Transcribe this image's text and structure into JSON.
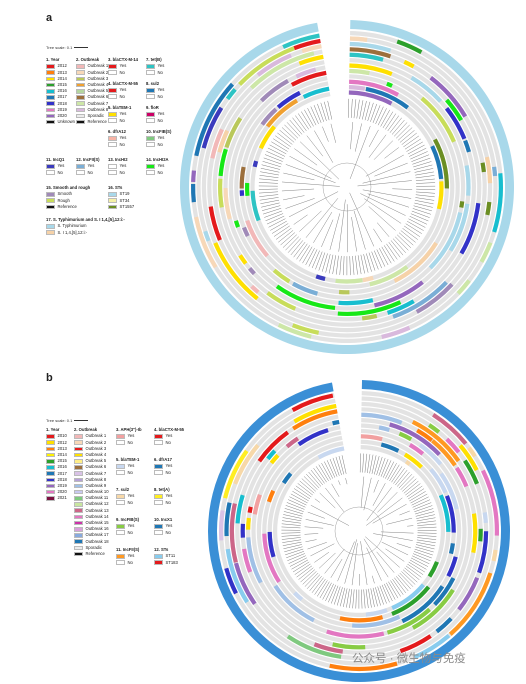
{
  "panel_a": {
    "letter": "a",
    "tree_scale": "Tree scale: 0.1",
    "groups": [
      {
        "title": "1. Year",
        "items": [
          [
            "2012",
            "#e41a1c"
          ],
          [
            "2013",
            "#ff7f0e"
          ],
          [
            "2014",
            "#ffe000"
          ],
          [
            "2015",
            "#2ca02c"
          ],
          [
            "2016",
            "#17becf"
          ],
          [
            "2017",
            "#1f77b4"
          ],
          [
            "2018",
            "#3232c8"
          ],
          [
            "2019",
            "#e377c2"
          ],
          [
            "2020",
            "#9467bd"
          ],
          [
            "Unknown",
            "#111111"
          ]
        ]
      },
      {
        "title": "2. Outbreak",
        "items": [
          [
            "Outbreak 1",
            "#f2b8b8"
          ],
          [
            "Outbreak 2",
            "#f7d8b8"
          ],
          [
            "Outbreak 3",
            "#b9c85a"
          ],
          [
            "Outbreak 4",
            "#f0a030"
          ],
          [
            "Outbreak 5",
            "#b4d6a0"
          ],
          [
            "Outbreak 6",
            "#9c6f3c"
          ],
          [
            "Outbreak 7",
            "#cde7a7"
          ],
          [
            "Outbreak 8",
            "#d9b9dd"
          ],
          [
            "Sporadic",
            "#ececec"
          ],
          [
            "Reference",
            "#111111"
          ]
        ]
      },
      {
        "title": "3. blaCTX-M-14",
        "items": [
          [
            "Yes",
            "#e41a1c"
          ],
          [
            "No",
            "#ffffff"
          ]
        ]
      },
      {
        "title": "4. blaCTX-M-55",
        "items": [
          [
            "Yes",
            "#e41a1c"
          ],
          [
            "No",
            "#ffffff"
          ]
        ]
      },
      {
        "title": "5. blaTEM-1",
        "items": [
          [
            "Yes",
            "#ffe000"
          ],
          [
            "No",
            "#ffffff"
          ]
        ]
      },
      {
        "title": "6. dfrA12",
        "items": [
          [
            "Yes",
            "#f7b4a6"
          ],
          [
            "No",
            "#ffffff"
          ]
        ]
      },
      {
        "title": "7. tet(B)",
        "items": [
          [
            "Yes",
            "#2ec4c4"
          ],
          [
            "No",
            "#ffffff"
          ]
        ]
      },
      {
        "title": "8. sul2",
        "items": [
          [
            "Yes",
            "#1f77b4"
          ],
          [
            "No",
            "#ffffff"
          ]
        ]
      },
      {
        "title": "9. floR",
        "items": [
          [
            "Yes",
            "#cc0066"
          ],
          [
            "No",
            "#ffffff"
          ]
        ]
      },
      {
        "title": "10. IncFIB(S)",
        "items": [
          [
            "Yes",
            "#7fc97f"
          ],
          [
            "No",
            "#ffffff"
          ]
        ]
      },
      {
        "title": "11. IncQ1",
        "items": [
          [
            "Yes",
            "#3b3bbd"
          ],
          [
            "No",
            "#ffffff"
          ]
        ]
      },
      {
        "title": "12. IncFII(S)",
        "items": [
          [
            "Yes",
            "#7aaed6"
          ],
          [
            "No",
            "#ffffff"
          ]
        ]
      },
      {
        "title": "13. IncHI2",
        "items": [
          [
            "Yes",
            "#ffffff"
          ],
          [
            "No",
            "#ffffff"
          ]
        ]
      },
      {
        "title": "14. IncHI2A",
        "items": [
          [
            "Yes",
            "#17e817"
          ],
          [
            "No",
            "#ffffff"
          ]
        ]
      },
      {
        "title": "15. Smooth and rough",
        "items": [
          [
            "Smooth",
            "#a08ab8"
          ],
          [
            "Rough",
            "#c8dd5a"
          ],
          [
            "Reference",
            "#111111"
          ]
        ]
      },
      {
        "title": "16. STs",
        "items": [
          [
            "ST19",
            "#a8d8ea"
          ],
          [
            "ST34",
            "#f5f0a8"
          ],
          [
            "ST1557",
            "#6b8e23"
          ]
        ]
      },
      {
        "title": "17. S. Typhimurium and S. I 1,4,[5],12:i:-",
        "items": [
          [
            "S. Typhimurium",
            "#a8d8ea"
          ],
          [
            "S. I 1,4,[5],12:i:-",
            "#f6d2a8"
          ]
        ]
      }
    ]
  },
  "panel_b": {
    "letter": "b",
    "tree_scale": "Tree scale: 0.1",
    "groups": [
      {
        "title": "1. Year",
        "items": [
          [
            "2010",
            "#e41a1c"
          ],
          [
            "2012",
            "#ffe000"
          ],
          [
            "2013",
            "#ff7f0e"
          ],
          [
            "2014",
            "#fff200"
          ],
          [
            "2015",
            "#2ca02c"
          ],
          [
            "2016",
            "#17becf"
          ],
          [
            "2017",
            "#1f77b4"
          ],
          [
            "2018",
            "#3232c8"
          ],
          [
            "2019",
            "#9467bd"
          ],
          [
            "2020",
            "#e377c2"
          ],
          [
            "2021",
            "#7b1040"
          ]
        ]
      },
      {
        "title": "2. Outbreak",
        "items": [
          [
            "Outbreak 1",
            "#f2b8b8"
          ],
          [
            "Outbreak 2",
            "#f7d8b8"
          ],
          [
            "Outbreak 3",
            "#e41a1c"
          ],
          [
            "Outbreak 4",
            "#ffe000"
          ],
          [
            "Outbreak 5",
            "#ffee88"
          ],
          [
            "Outbreak 6",
            "#9c6f3c"
          ],
          [
            "Outbreak 7",
            "#d9c2e6"
          ],
          [
            "Outbreak 8",
            "#b6a0d6"
          ],
          [
            "Outbreak 9",
            "#a0c0e6"
          ],
          [
            "Outbreak 10",
            "#c8c8f0"
          ],
          [
            "Outbreak 11",
            "#7fc97f"
          ],
          [
            "Outbreak 12",
            "#c8e6a0"
          ],
          [
            "Outbreak 13",
            "#cc6688"
          ],
          [
            "Outbreak 14",
            "#e377c2"
          ],
          [
            "Outbreak 15",
            "#cc33aa"
          ],
          [
            "Outbreak 16",
            "#d9a0d9"
          ],
          [
            "Outbreak 17",
            "#88aadd"
          ],
          [
            "Outbreak 18",
            "#1f77b4"
          ],
          [
            "Sporadic",
            "#ececec"
          ],
          [
            "Reference",
            "#111111"
          ]
        ]
      },
      {
        "title": "3. APH(3'')-Ib",
        "items": [
          [
            "Yes",
            "#f2a0a0"
          ],
          [
            "No",
            "#ffffff"
          ]
        ]
      },
      {
        "title": "4. blaCTX-M-55",
        "items": [
          [
            "Yes",
            "#e41a1c"
          ],
          [
            "No",
            "#ffffff"
          ]
        ]
      },
      {
        "title": "5. blaTEM-1",
        "items": [
          [
            "Yes",
            "#c8d8f0"
          ],
          [
            "No",
            "#ffffff"
          ]
        ]
      },
      {
        "title": "6. dfrA17",
        "items": [
          [
            "Yes",
            "#1f77b4"
          ],
          [
            "No",
            "#ffffff"
          ]
        ]
      },
      {
        "title": "7. sul2",
        "items": [
          [
            "Yes",
            "#f7d8a8"
          ],
          [
            "No",
            "#ffffff"
          ]
        ]
      },
      {
        "title": "8. tet(A)",
        "items": [
          [
            "Yes",
            "#ffee22"
          ],
          [
            "No",
            "#ffffff"
          ]
        ]
      },
      {
        "title": "9. IncFIB(S)",
        "items": [
          [
            "Yes",
            "#88cc44"
          ],
          [
            "No",
            "#ffffff"
          ]
        ]
      },
      {
        "title": "10. IncX1",
        "items": [
          [
            "Yes",
            "#1f77b4"
          ],
          [
            "No",
            "#ffffff"
          ]
        ]
      },
      {
        "title": "11. IncFII(S)",
        "items": [
          [
            "Yes",
            "#ff9922"
          ],
          [
            "No",
            "#ffffff"
          ]
        ]
      },
      {
        "title": "12. STs",
        "items": [
          [
            "ST11",
            "#88ccee"
          ],
          [
            "ST183",
            "#e41a1c"
          ]
        ]
      }
    ]
  },
  "ring_a_colors": [
    "#a8d8ea",
    "#f6d2a8",
    "#a08ab8",
    "#c8dd5a",
    "#6b8e23",
    "#2ec4c4",
    "#3b3bbd",
    "#17e817",
    "#7aaed6",
    "#e41a1c",
    "#1f77b4",
    "#ffe000",
    "#2ca02c",
    "#17becf",
    "#3232c8",
    "#e377c2",
    "#9467bd",
    "#f2b8b8",
    "#f7d8b8",
    "#b9c85a",
    "#f0a030",
    "#9c6f3c",
    "#cde7a7",
    "#d9b9dd"
  ],
  "ring_b_colors": [
    "#1f77b4",
    "#88ccee",
    "#e41a1c",
    "#ff9922",
    "#88cc44",
    "#ffee22",
    "#f7d8a8",
    "#c8d8f0",
    "#1f77b4",
    "#e41a1c",
    "#f2a0a0",
    "#ffe000",
    "#2ca02c",
    "#17becf",
    "#3232c8",
    "#9467bd",
    "#e377c2",
    "#ff7f0e",
    "#7fc97f",
    "#cc6688",
    "#d9c2e6",
    "#a0c0e6"
  ],
  "watermark": "公众号 · 微生物与免疫"
}
